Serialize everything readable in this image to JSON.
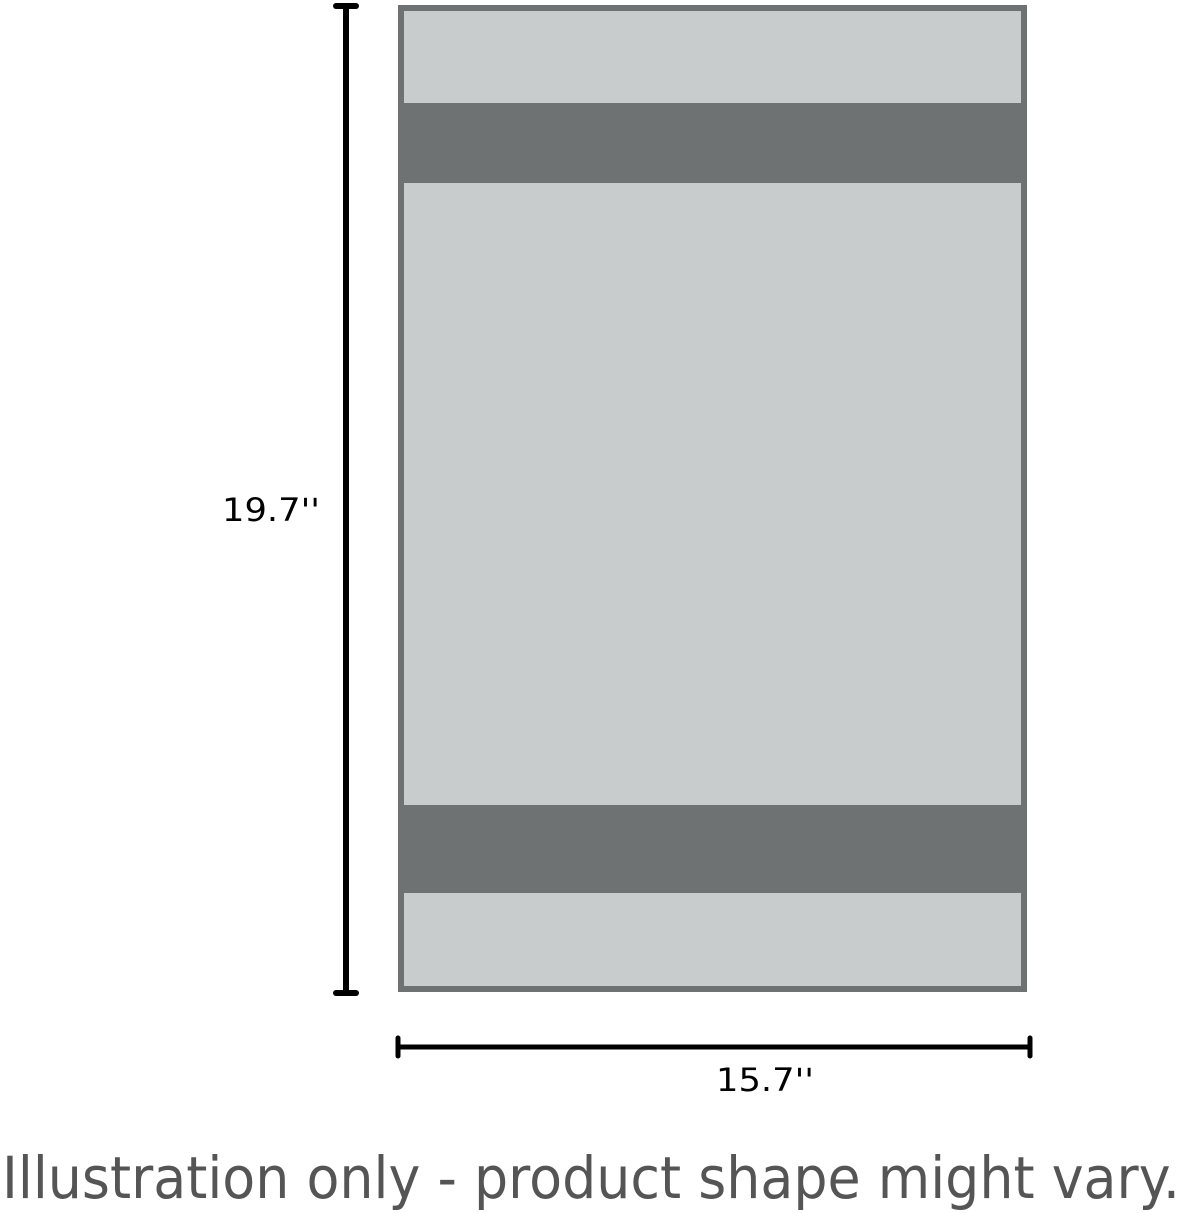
{
  "diagram": {
    "height_label": "19.7''",
    "width_label": "15.7''",
    "caption": "Illustration only - product shape might vary.",
    "colors": {
      "body_fill": "#c8cccc",
      "band_fill": "#6f7272",
      "outline": "#6f7272",
      "dimension_line": "#000000",
      "caption_text": "#555555"
    }
  }
}
